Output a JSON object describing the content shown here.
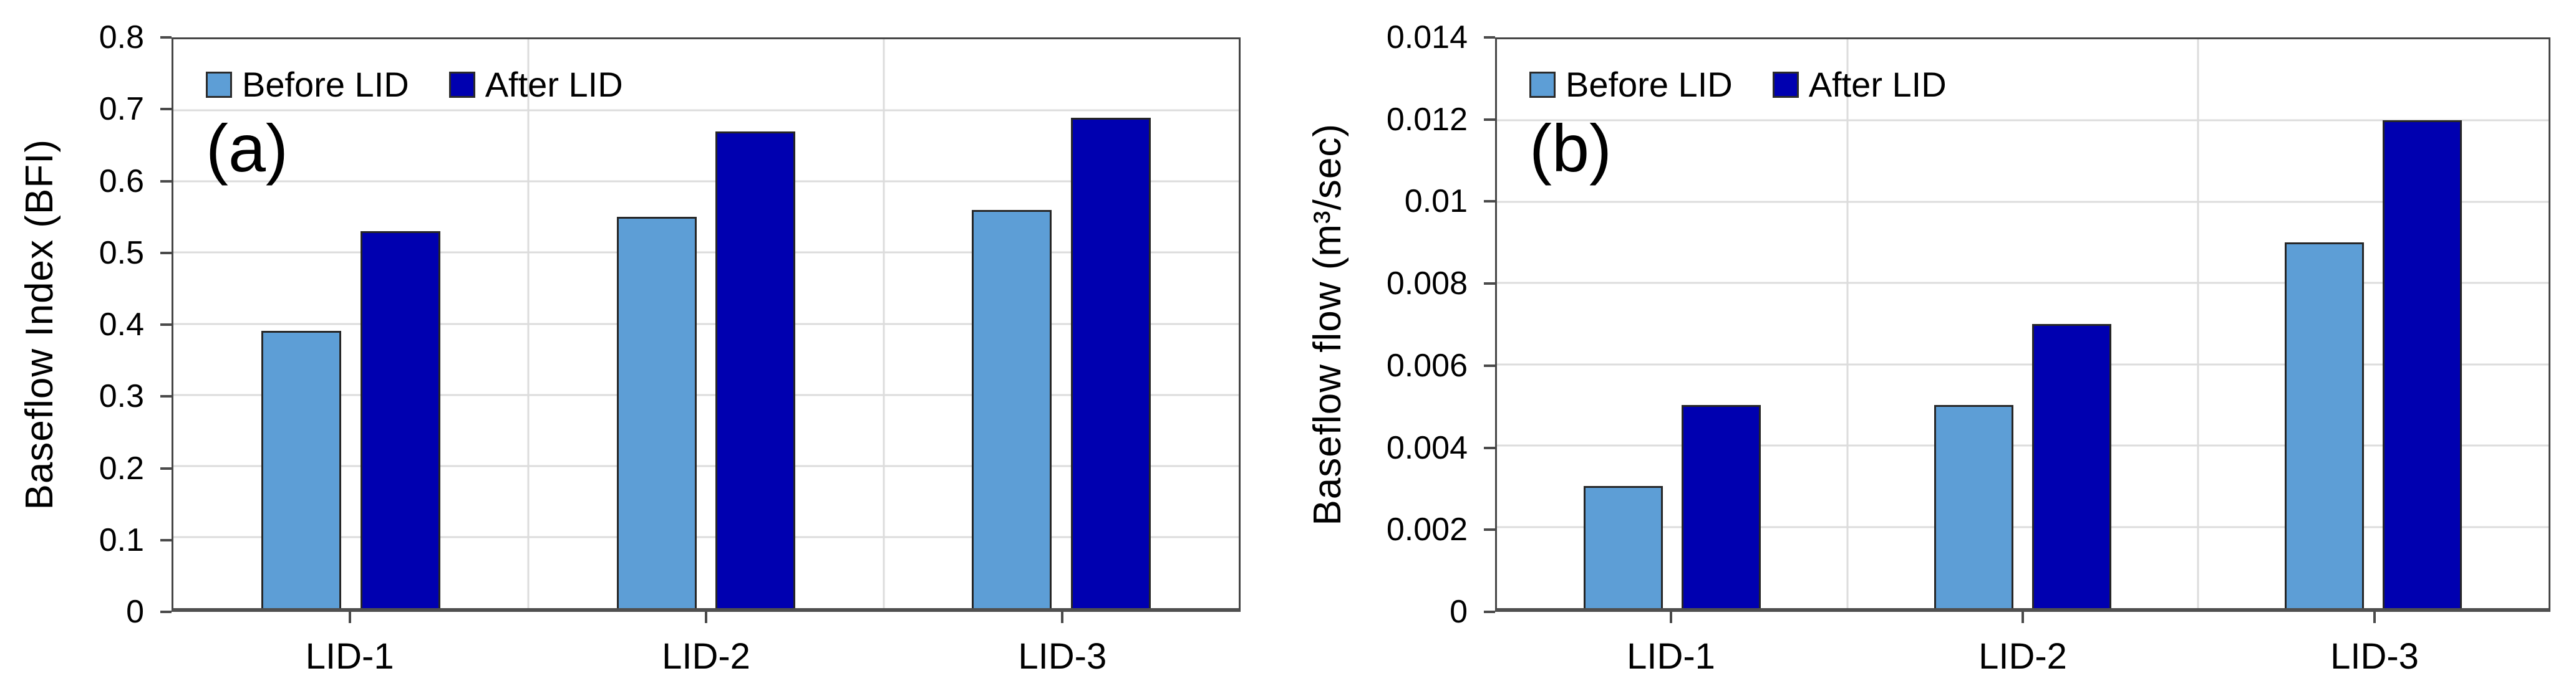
{
  "colors": {
    "before_lid": "#5D9ED6",
    "after_lid": "#0000B0",
    "gridline": "#DCDCDC",
    "frame": "#464646",
    "axis": "#4F4F4F",
    "bar_border": "#262626",
    "text": "#000000",
    "background": "#FFFFFF"
  },
  "chart_data": [
    {
      "type": "bar",
      "panel_label": "(a)",
      "title": "",
      "xlabel": "",
      "ylabel": "Baseflow Index (BFI)",
      "categories": [
        "LID-1",
        "LID-2",
        "LID-3"
      ],
      "series": [
        {
          "name": "Before LID",
          "color": "#5D9ED6",
          "values": [
            0.39,
            0.55,
            0.56
          ]
        },
        {
          "name": "After LID",
          "color": "#0000B0",
          "values": [
            0.53,
            0.67,
            0.69
          ]
        }
      ],
      "ylim": [
        0,
        0.8
      ],
      "yticks": [
        "0.8",
        "0.7",
        "0.6",
        "0.5",
        "0.4",
        "0.3",
        "0.2",
        "0.1",
        "0"
      ],
      "grid": true,
      "legend_position": "top-left-inside"
    },
    {
      "type": "bar",
      "panel_label": "(b)",
      "title": "",
      "xlabel": "",
      "ylabel": "Baseflow flow (m³/sec)",
      "categories": [
        "LID-1",
        "LID-2",
        "LID-3"
      ],
      "series": [
        {
          "name": "Before LID",
          "color": "#5D9ED6",
          "values": [
            0.003,
            0.005,
            0.009
          ]
        },
        {
          "name": "After LID",
          "color": "#0000B0",
          "values": [
            0.005,
            0.007,
            0.012
          ]
        }
      ],
      "ylim": [
        0,
        0.014
      ],
      "yticks": [
        "0.014",
        "0.012",
        "0.01",
        "0.008",
        "0.006",
        "0.004",
        "0.002",
        "0"
      ],
      "grid": true,
      "legend_position": "top-left-inside"
    }
  ]
}
